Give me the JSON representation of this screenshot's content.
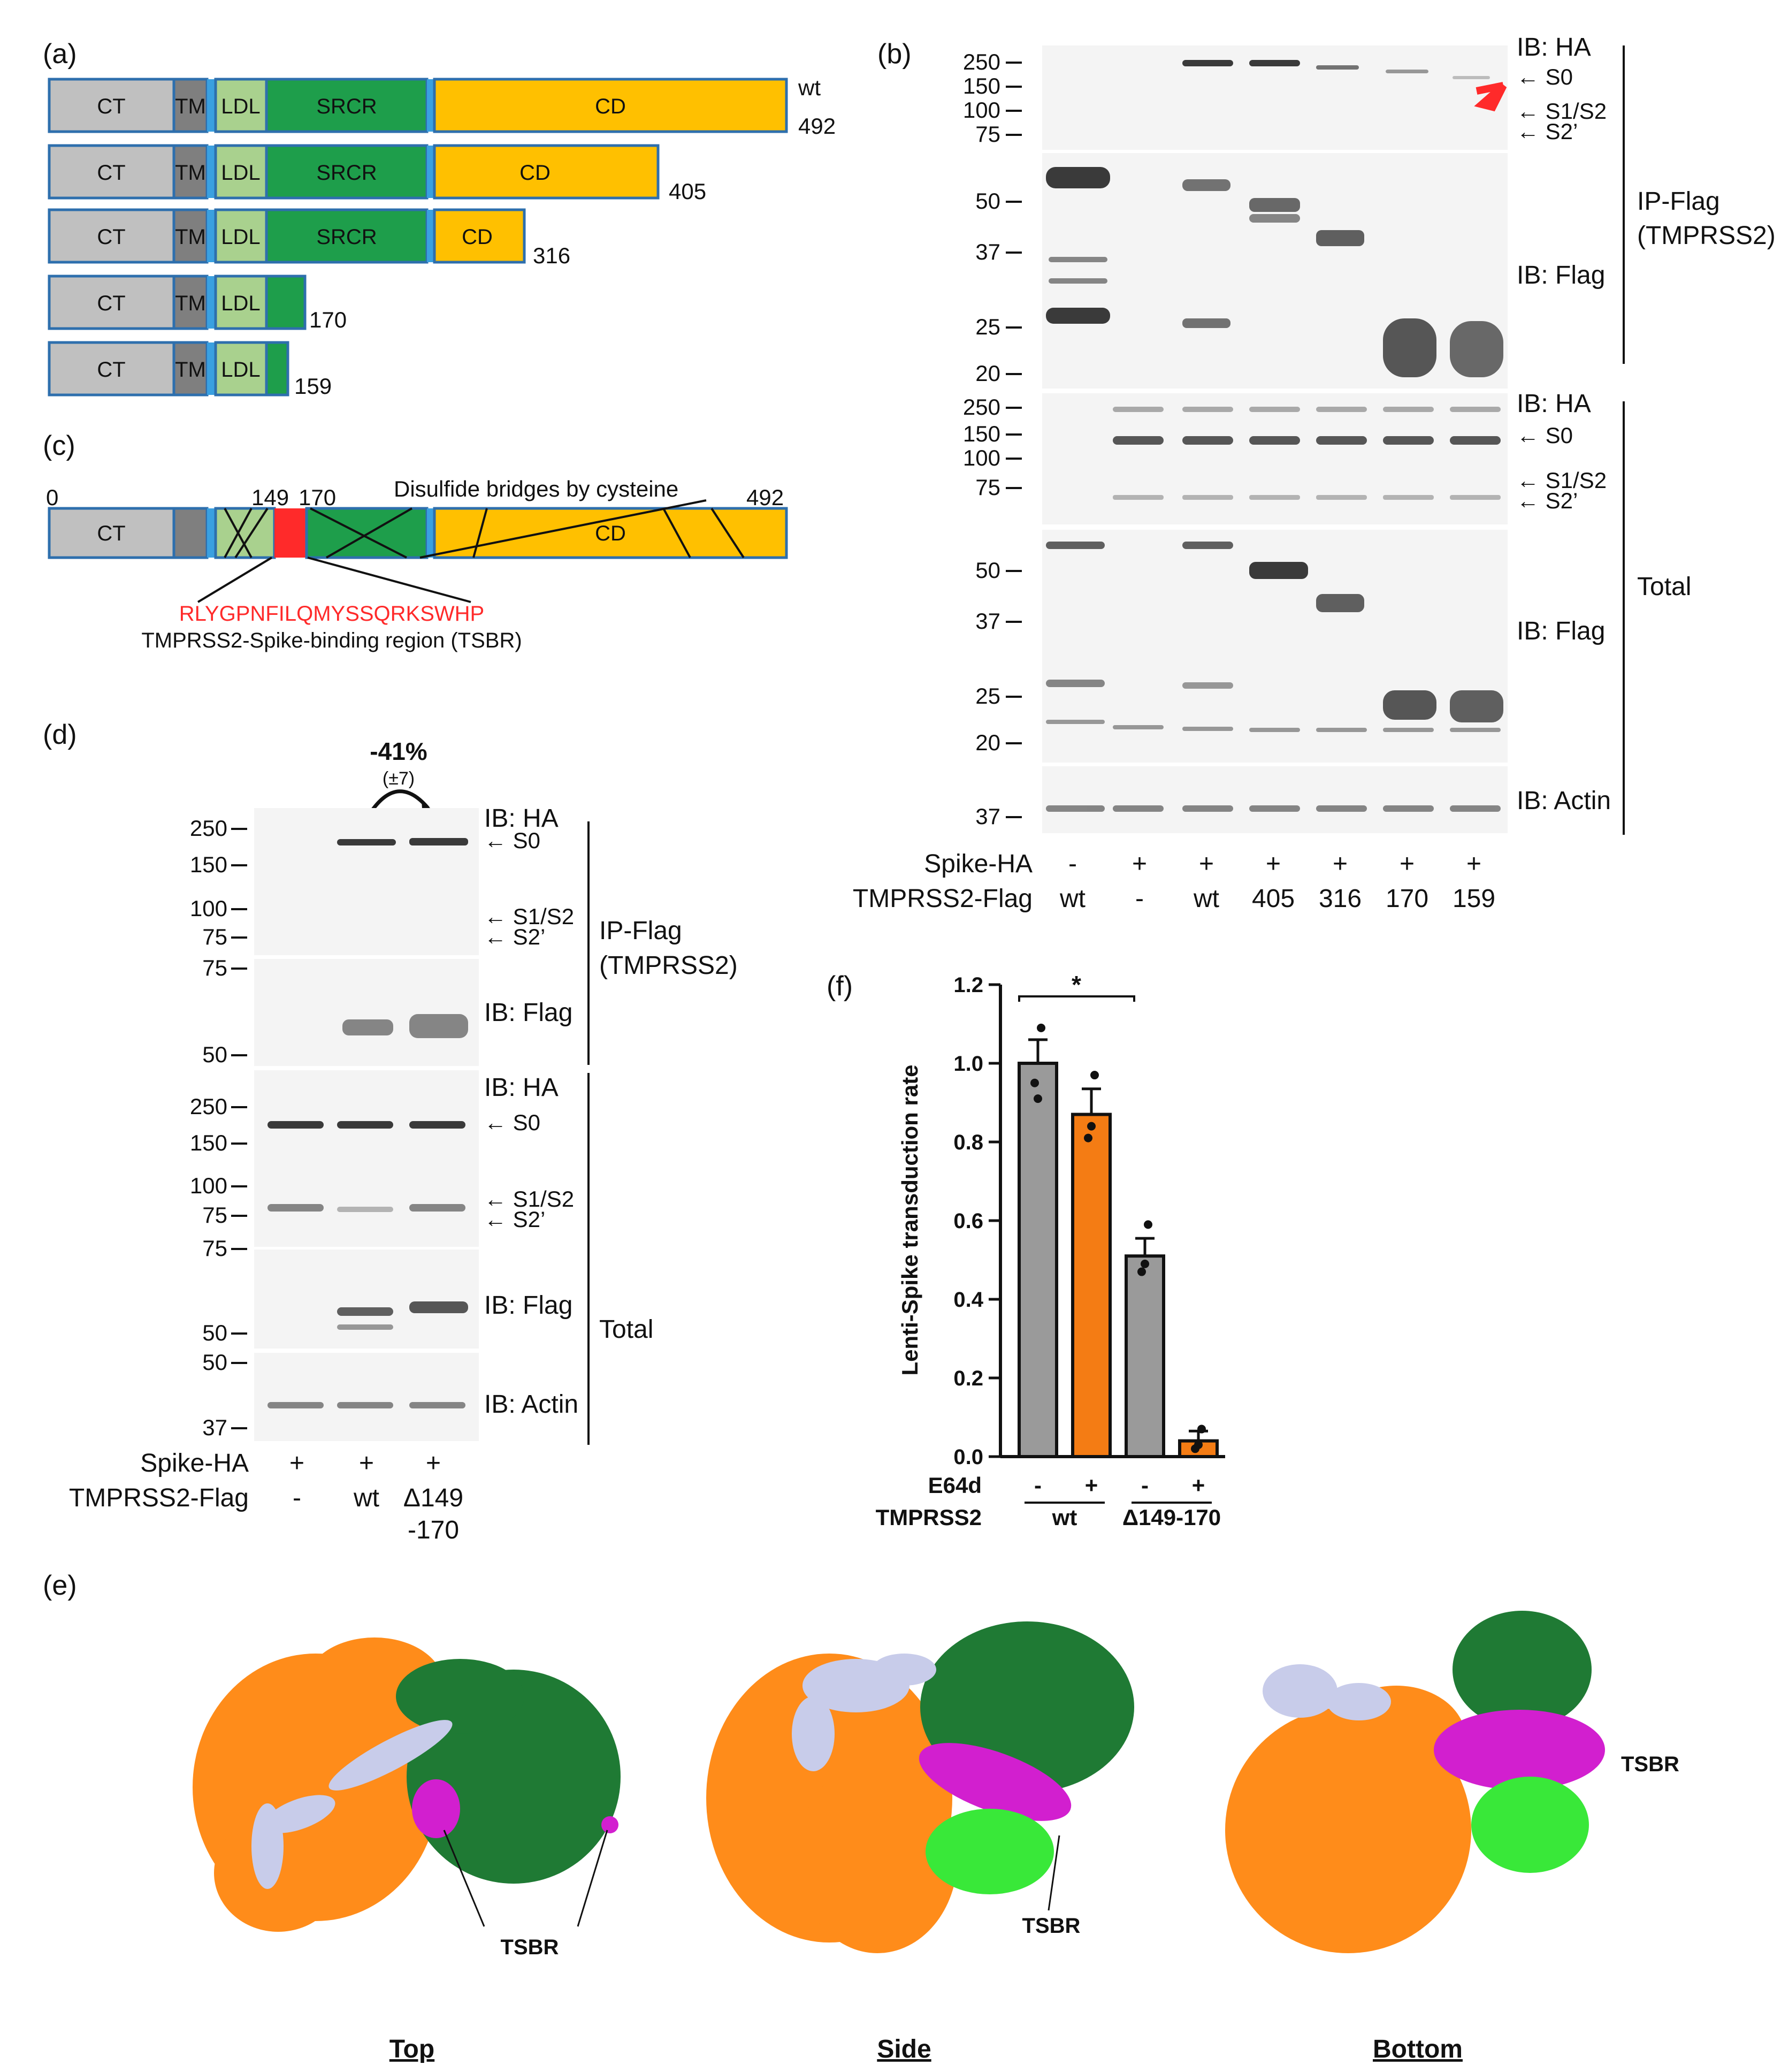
{
  "panels": {
    "a": "(a)",
    "b": "(b)",
    "c": "(c)",
    "d": "(d)",
    "e": "(e)",
    "f": "(f)"
  },
  "panel_a": {
    "domains": [
      "CT",
      "TM",
      "LDL",
      "SRCR",
      "CD"
    ],
    "constructs": [
      {
        "label": "wt",
        "end": "492",
        "domains": [
          "CT",
          "TM",
          "LDL",
          "SRCR",
          "CD"
        ]
      },
      {
        "label": "",
        "end": "405",
        "domains": [
          "CT",
          "TM",
          "LDL",
          "SRCR",
          "CD"
        ]
      },
      {
        "label": "",
        "end": "316",
        "domains": [
          "CT",
          "TM",
          "LDL",
          "SRCR",
          "CD"
        ]
      },
      {
        "label": "",
        "end": "170",
        "domains": [
          "CT",
          "TM",
          "LDL"
        ]
      },
      {
        "label": "",
        "end": "159",
        "domains": [
          "CT",
          "TM",
          "LDL"
        ]
      }
    ],
    "colors": {
      "CT": "#c0c0c0",
      "TM": "#7f7f7f",
      "LDL": "#a9d18e",
      "SRCR": "#1e9e4b",
      "CD": "#ffc000",
      "border": "#2e6fad",
      "linker": "#3aa0e0"
    }
  },
  "panel_c": {
    "start": "0",
    "p149": "149",
    "p170": "170",
    "end": "492",
    "ct": "CT",
    "cd": "CD",
    "disulfide": "Disulfide bridges by cysteine",
    "sequence": "RLYGPNFILQMYSSQRKSWHP",
    "tsbr": "TMPRSS2-Spike-binding region (TSBR)",
    "tsbr_color": "#ff2a2a"
  },
  "panel_b": {
    "mw_ha": [
      "250",
      "150",
      "100",
      "75"
    ],
    "mw_flag": [
      "50",
      "37",
      "25",
      "20"
    ],
    "mw_ha2": [
      "250",
      "150",
      "100",
      "75"
    ],
    "mw_flag2": [
      "50",
      "37",
      "25",
      "20"
    ],
    "mw_actin": [
      "37"
    ],
    "ib_ha": "IB: HA",
    "ib_flag": "IB: Flag",
    "ib_ha2": "IB: HA",
    "ib_flag2": "IB: Flag",
    "ib_actin": "IB: Actin",
    "s0": "S0",
    "s1s2": "S1/S2",
    "s2p": "S2’",
    "s0_2": "S0",
    "s1s2_2": "S1/S2",
    "s2p_2": "S2’",
    "ip_flag": "IP-Flag",
    "ip_tmprss2": "(TMPRSS2)",
    "total": "Total",
    "row1_label": "Spike-HA",
    "row2_label": "TMPRSS2-Flag",
    "spike": [
      "-",
      "+",
      "+",
      "+",
      "+",
      "+",
      "+"
    ],
    "tmprss2": [
      "wt",
      "-",
      "wt",
      "405",
      "316",
      "170",
      "159"
    ]
  },
  "panel_d": {
    "change": "-41%",
    "change_sd": "(±7)",
    "mw_ha": [
      "250",
      "150",
      "100",
      "75"
    ],
    "mw_flag": [
      "75",
      "50"
    ],
    "mw_ha2": [
      "250",
      "150",
      "100",
      "75"
    ],
    "mw_flag2": [
      "75",
      "50"
    ],
    "mw_actin": [
      "50",
      "37"
    ],
    "ib_ha": "IB: HA",
    "ib_flag": "IB: Flag",
    "ib_ha2": "IB: HA",
    "ib_flag2": "IB: Flag",
    "ib_actin": "IB: Actin",
    "s0": "S0",
    "s1s2": "S1/S2",
    "s2p": "S2’",
    "s0_2": "S0",
    "s1s2_2": "S1/S2",
    "s2p_2": "S2’",
    "ip_flag": "IP-Flag",
    "ip_tmprss2": "(TMPRSS2)",
    "total": "Total",
    "row1_label": "Spike-HA",
    "row2_label": "TMPRSS2-Flag",
    "spike": [
      "+",
      "+",
      "+"
    ],
    "tmprss2": [
      "-",
      "wt",
      "Δ149"
    ],
    "tmprss2_line2": "-170"
  },
  "panel_e": {
    "views": [
      "Top",
      "Side",
      "Bottom"
    ],
    "tsbr": [
      "TSBR",
      "TSBR",
      "TSBR"
    ],
    "colors": {
      "orange": "#ff8c1a",
      "dark_green": "#1f7a34",
      "light_green": "#39e839",
      "magenta": "#d21fcf",
      "lavender": "#c8ccea"
    }
  },
  "chart_data": {
    "type": "bar",
    "ylabel": "Lenti-Spike transduction rate",
    "ylim": [
      0,
      1.2
    ],
    "yticks": [
      "0.0",
      "0.2",
      "0.4",
      "0.6",
      "0.8",
      "1.0",
      "1.2"
    ],
    "e64d_label": "E64d",
    "tmprss2_label": "TMPRSS2",
    "e64d": [
      "-",
      "+",
      "-",
      "+"
    ],
    "groups": [
      "wt",
      "Δ149-170"
    ],
    "values": [
      1.0,
      0.87,
      0.51,
      0.04
    ],
    "errors": [
      0.06,
      0.065,
      0.045,
      0.025
    ],
    "points": [
      [
        0.95,
        0.91,
        1.09
      ],
      [
        0.81,
        0.84,
        0.97
      ],
      [
        0.47,
        0.49,
        0.59
      ],
      [
        0.02,
        0.03,
        0.07
      ]
    ],
    "colors": [
      "#9a9a9a",
      "#f47c14",
      "#9a9a9a",
      "#f47c14"
    ],
    "significance": "*"
  }
}
